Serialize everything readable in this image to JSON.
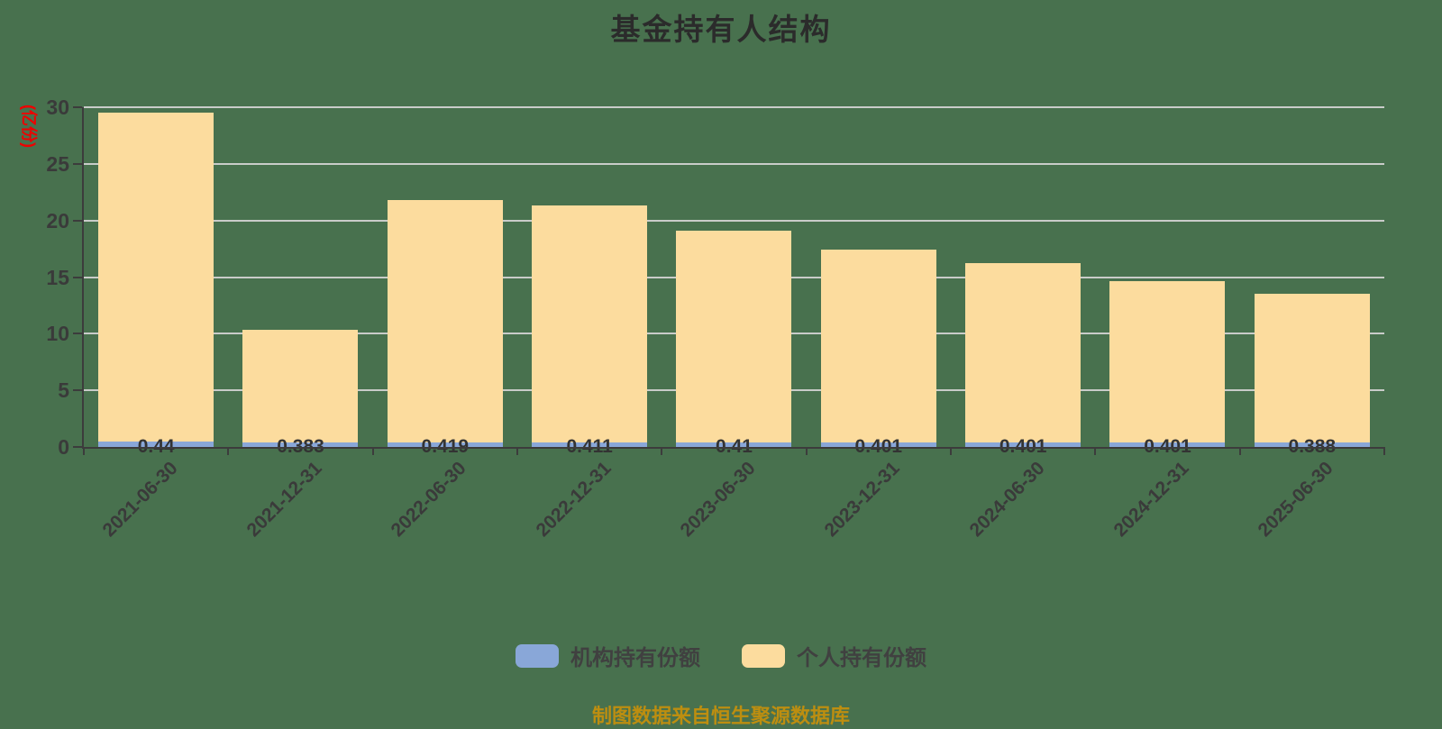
{
  "title": "基金持有人结构",
  "y_axis_name": "(亿份)",
  "footer": {
    "text": "制图数据来自恒生聚源数据库"
  },
  "colors": {
    "background": "#48714E",
    "institution_bar": "#89A7D8",
    "personal_bar": "#FCDC9E",
    "gridline": "#C9CCC9",
    "axis": "#3C3C3C",
    "label_text": "#333333",
    "y_axis_name_text": "#EE0000",
    "footer_text": "#BD8E10"
  },
  "chart_data": {
    "type": "bar",
    "stacked": true,
    "title": "基金持有人结构",
    "ylabel": "(亿份)",
    "ylim": [
      0,
      30
    ],
    "yticks": [
      0,
      5,
      10,
      15,
      20,
      25,
      30
    ],
    "grid": true,
    "legend_position": "bottom",
    "categories": [
      "2021-06-30",
      "2021-12-31",
      "2022-06-30",
      "2022-12-31",
      "2023-06-30",
      "2023-12-31",
      "2024-06-30",
      "2024-12-31",
      "2025-06-30"
    ],
    "series": [
      {
        "name": "机构持有份额",
        "color": "#89A7D8",
        "values": [
          0.44,
          0.383,
          0.419,
          0.411,
          0.41,
          0.401,
          0.401,
          0.401,
          0.388
        ]
      },
      {
        "name": "个人持有份额",
        "color": "#FCDC9E",
        "values": [
          29.11,
          9.94,
          21.38,
          20.94,
          18.69,
          17.0,
          15.8,
          14.28,
          13.13
        ]
      }
    ],
    "bar_labels": [
      "0.44",
      "0.383",
      "0.419",
      "0.411",
      "0.41",
      "0.401",
      "0.401",
      "0.401",
      "0.388"
    ],
    "totals": [
      29.55,
      10.32,
      21.8,
      21.35,
      19.1,
      17.4,
      16.2,
      14.68,
      13.52
    ]
  }
}
